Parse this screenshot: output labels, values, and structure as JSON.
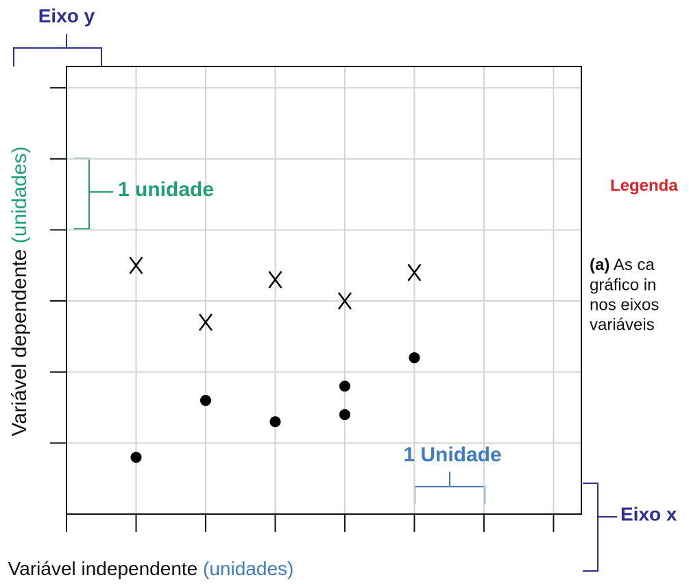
{
  "chart_data": {
    "type": "scatter",
    "xlabel": "Variável independente",
    "xlabel_unit": "(unidades)",
    "xlabel_unit_color": "#3f7bbf",
    "ylabel": "Variável dependente",
    "ylabel_unit": "(unidades)",
    "ylabel_unit_color": "#1f9e7a",
    "xlim": [
      0,
      7.4
    ],
    "ylim": [
      0,
      6.3
    ],
    "xticks": [
      0,
      1,
      2,
      3,
      4,
      5,
      6,
      7
    ],
    "yticks": [
      1,
      2,
      3,
      4,
      5,
      6
    ],
    "grid": true,
    "series": [
      {
        "marker": "x",
        "color": "#000000",
        "x": [
          1,
          2,
          3,
          4,
          5
        ],
        "values": [
          3.5,
          2.7,
          3.3,
          3.0,
          3.4
        ]
      },
      {
        "marker": "dot",
        "color": "#000000",
        "x": [
          1,
          2,
          3,
          4,
          4,
          5
        ],
        "values": [
          0.8,
          1.6,
          1.3,
          1.8,
          1.4,
          2.2
        ]
      }
    ],
    "annotations": [
      {
        "text": "Eixo y",
        "color": "#2e2f8e"
      },
      {
        "text": "1 unidade",
        "color": "#1f9e7a"
      },
      {
        "text": "1 Unidade",
        "color": "#3f7bbf"
      },
      {
        "text": "Eixo x",
        "color": "#2e2f8e"
      },
      {
        "text": "Legenda",
        "color": "#d8232a"
      }
    ],
    "caption": {
      "label": "(a)",
      "lines": [
        "As ca",
        "gráfico in",
        "nos eixos",
        "variáveis"
      ]
    }
  }
}
